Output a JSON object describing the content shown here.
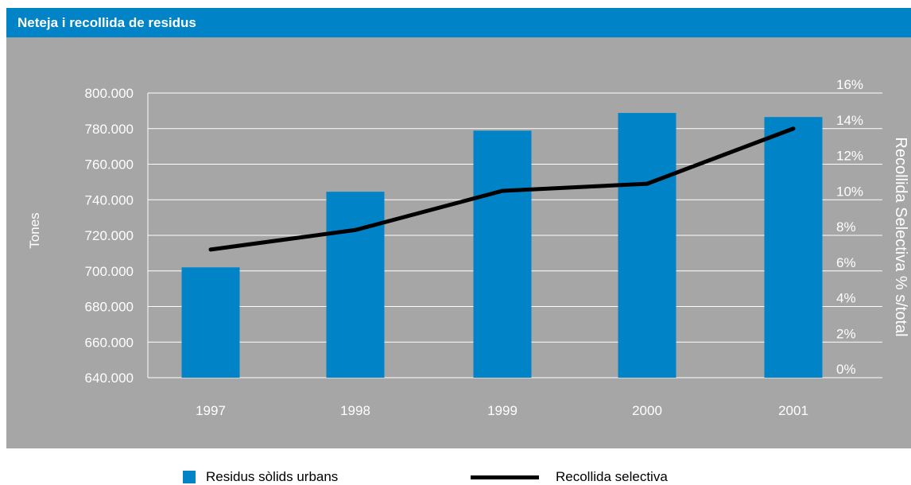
{
  "header": {
    "title": "Neteja i recollida de residus"
  },
  "colors": {
    "bar": "#0084c7",
    "line": "#000000",
    "header": "#0084c7",
    "panel": "#a6a6a6",
    "grid": "#ffffff",
    "text": "#ffffff"
  },
  "legend": {
    "bar_label": "Residus sòlids urbans",
    "line_label": "Recollida selectiva"
  },
  "chart_data": {
    "type": "bar",
    "categories": [
      "1997",
      "1998",
      "1999",
      "2000",
      "2001"
    ],
    "series": [
      {
        "name": "Residus sòlids urbans",
        "type": "bar",
        "axis": "left",
        "values": [
          702000,
          744500,
          778800,
          788800,
          786500
        ]
      },
      {
        "name": "Recollida selectiva",
        "type": "line",
        "axis": "right",
        "values": [
          7.2,
          8.3,
          10.5,
          10.9,
          14.0
        ]
      }
    ],
    "ylabel": "Tones",
    "ylabel_right": "Recollida Selectiva % s/total",
    "ylim": [
      640000,
      800000
    ],
    "ylim_right": [
      0,
      16
    ],
    "yticks": [
      "640.000",
      "660.000",
      "680.000",
      "700.000",
      "720.000",
      "740.000",
      "760.000",
      "780.000",
      "800.000"
    ],
    "yticks_right": [
      "0%",
      "2%",
      "4%",
      "6%",
      "8%",
      "10%",
      "12%",
      "14%",
      "16%"
    ],
    "grid": true,
    "legend_position": "bottom"
  }
}
